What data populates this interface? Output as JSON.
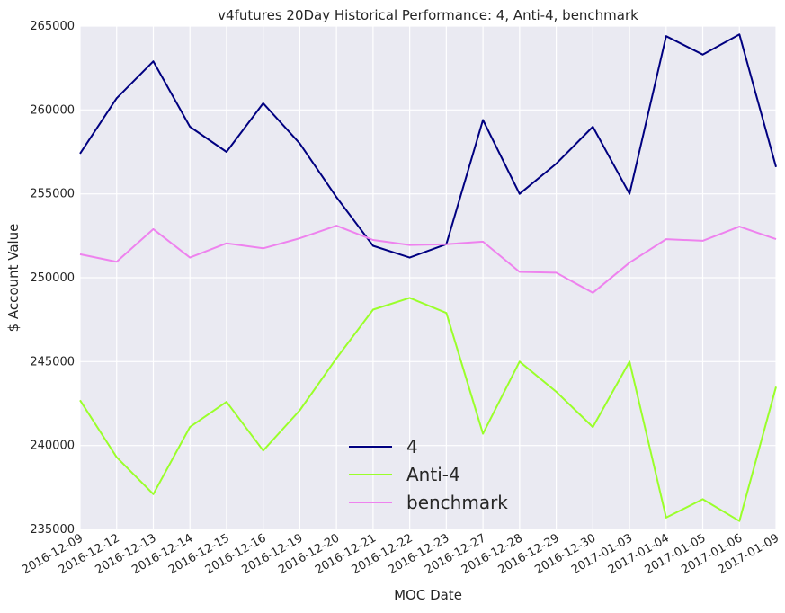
{
  "chart_data": {
    "type": "line",
    "title": "v4futures 20Day Historical Performance: 4, Anti-4, benchmark",
    "xlabel": "MOC Date",
    "ylabel": "$ Account Value",
    "x": [
      "2016-12-09",
      "2016-12-12",
      "2016-12-13",
      "2016-12-14",
      "2016-12-15",
      "2016-12-16",
      "2016-12-19",
      "2016-12-20",
      "2016-12-21",
      "2016-12-22",
      "2016-12-23",
      "2016-12-27",
      "2016-12-28",
      "2016-12-29",
      "2016-12-30",
      "2017-01-03",
      "2017-01-04",
      "2017-01-05",
      "2017-01-06",
      "2017-01-09"
    ],
    "ylim": [
      235000,
      265000
    ],
    "yticks": [
      "235000",
      "240000",
      "245000",
      "250000",
      "255000",
      "260000",
      "265000"
    ],
    "grid": true,
    "background": "#eaeaf2",
    "legend_position": "bottom-center",
    "series": [
      {
        "name": "4",
        "color": "#000080",
        "values": [
          257400,
          260700,
          262900,
          259000,
          257500,
          260400,
          258000,
          254800,
          251900,
          251200,
          252000,
          259400,
          255000,
          256800,
          259000,
          255000,
          264400,
          263300,
          264500,
          256600
        ]
      },
      {
        "name": "Anti-4",
        "color": "#9aff2a",
        "values": [
          242700,
          239300,
          237100,
          241100,
          242600,
          239700,
          242100,
          245200,
          248100,
          248800,
          247900,
          240700,
          245000,
          243200,
          241100,
          245000,
          235700,
          236800,
          235500,
          243500
        ]
      },
      {
        "name": "benchmark",
        "color": "#ee82ee",
        "values": [
          251400,
          250950,
          252900,
          251200,
          252050,
          251750,
          252350,
          253100,
          252250,
          251950,
          252000,
          252150,
          250350,
          250300,
          249100,
          250900,
          252300,
          252200,
          253050,
          252300
        ]
      }
    ]
  }
}
